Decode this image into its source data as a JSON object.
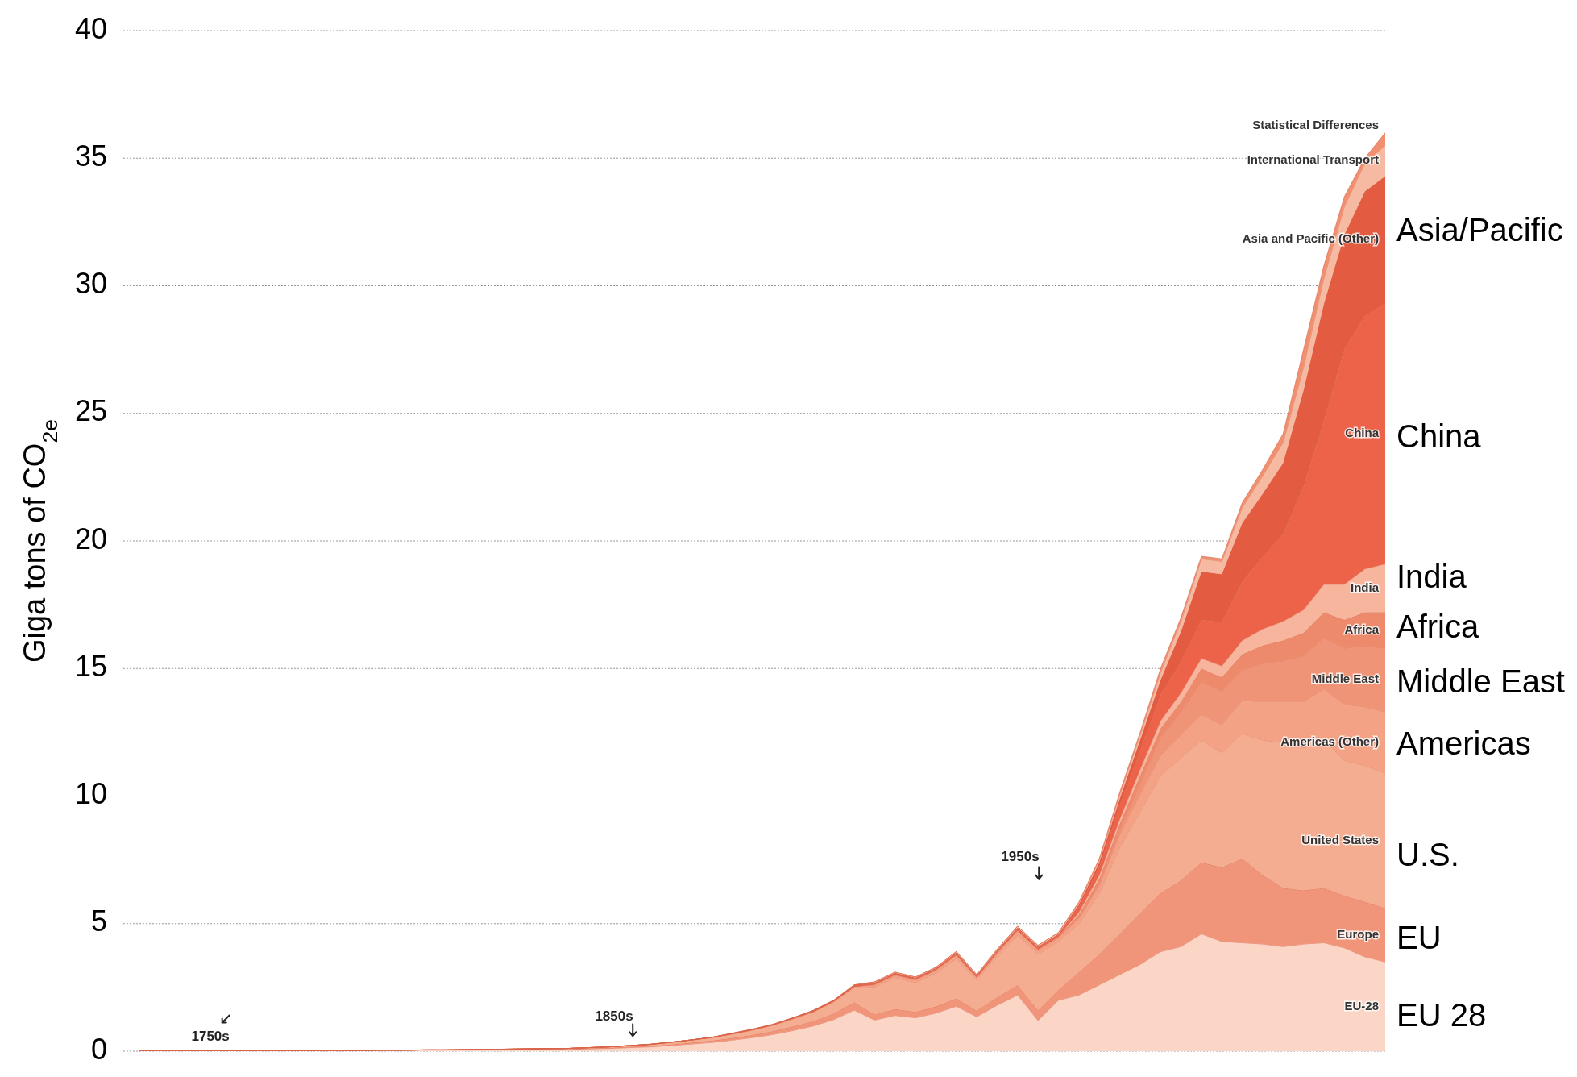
{
  "chart_data": {
    "type": "area",
    "stacked": true,
    "ylabel": "Giga tons of CO$_{2e}$",
    "ylim": [
      0,
      40
    ],
    "yticks": [
      0,
      5,
      10,
      15,
      20,
      25,
      30,
      35,
      40
    ],
    "grid": "y",
    "tick_labels": "y",
    "categories": [
      null,
      null,
      null,
      null,
      null,
      null,
      null,
      null,
      null,
      null,
      null,
      null,
      null,
      null,
      null,
      null,
      null,
      null,
      null,
      null,
      null,
      null,
      null,
      null,
      null,
      null,
      null,
      null,
      null,
      null,
      null,
      null,
      null,
      null,
      null,
      null,
      null,
      null,
      null,
      null,
      null,
      null,
      null,
      null,
      null,
      null,
      null,
      null,
      null,
      null,
      null,
      null,
      null,
      null,
      null,
      null,
      null,
      null,
      null,
      null,
      null,
      null
    ],
    "series": [
      {
        "name": "EU-28",
        "color": "#fbd5c5",
        "values": [
          0.02,
          0.02,
          0.02,
          0.02,
          0.02,
          0.02,
          0.02,
          0.02,
          0.02,
          0.02,
          0.03,
          0.03,
          0.04,
          0.04,
          0.05,
          0.05,
          0.06,
          0.07,
          0.08,
          0.09,
          0.1,
          0.07,
          0.09,
          0.11,
          0.14,
          0.17,
          0.22,
          0.28,
          0.34,
          0.43,
          0.53,
          0.65,
          0.81,
          0.99,
          1.24,
          1.61,
          1.22,
          1.4,
          1.31,
          1.49,
          1.76,
          1.35,
          1.8,
          2.2,
          1.2,
          2.0,
          2.2,
          2.6,
          3.0,
          3.4,
          3.9,
          4.1,
          4.6,
          4.3,
          4.25,
          4.2,
          4.1,
          4.2,
          4.25,
          4.05,
          3.7,
          3.5
        ]
      },
      {
        "name": "Europe",
        "color": "#f0957a",
        "values": [
          0,
          0,
          0,
          0,
          0,
          0,
          0,
          0,
          0,
          0,
          0,
          0,
          0,
          0,
          0,
          0,
          0,
          0,
          0,
          0,
          0,
          0.01,
          0.02,
          0.02,
          0.03,
          0.03,
          0.04,
          0.05,
          0.07,
          0.08,
          0.1,
          0.13,
          0.16,
          0.19,
          0.24,
          0.31,
          0.22,
          0.25,
          0.23,
          0.26,
          0.31,
          0.24,
          0.32,
          0.39,
          0.4,
          0.4,
          0.9,
          1.2,
          1.6,
          2.0,
          2.3,
          2.6,
          2.8,
          2.9,
          3.3,
          2.7,
          2.3,
          2.1,
          2.15,
          2.05,
          2.15,
          2.1
        ]
      },
      {
        "name": "United States",
        "color": "#f5ad91",
        "values": [
          0,
          0,
          0,
          0,
          0,
          0,
          0,
          0,
          0,
          0,
          0,
          0,
          0,
          0,
          0,
          0,
          0,
          0,
          0,
          0,
          0,
          0.03,
          0.03,
          0.04,
          0.05,
          0.06,
          0.08,
          0.1,
          0.12,
          0.15,
          0.19,
          0.23,
          0.29,
          0.35,
          0.44,
          0.57,
          1.08,
          1.24,
          1.16,
          1.32,
          1.56,
          1.2,
          1.6,
          1.96,
          2.2,
          1.9,
          1.9,
          2.4,
          3.4,
          4.0,
          4.6,
          4.8,
          4.8,
          4.5,
          4.9,
          5.3,
          5.7,
          5.6,
          5.8,
          5.3,
          5.35,
          5.3
        ]
      },
      {
        "name": "Americas (Other)",
        "color": "#f3a285",
        "values": [
          0,
          0,
          0,
          0,
          0,
          0,
          0,
          0,
          0,
          0,
          0,
          0,
          0,
          0,
          0,
          0,
          0,
          0,
          0,
          0,
          0,
          0,
          0,
          0,
          0,
          0.01,
          0.01,
          0.01,
          0.01,
          0.02,
          0.02,
          0.02,
          0.03,
          0.03,
          0.04,
          0.05,
          0.08,
          0.09,
          0.09,
          0.1,
          0.12,
          0.09,
          0.12,
          0.15,
          0.15,
          0.15,
          0.2,
          0.3,
          0.5,
          0.7,
          0.8,
          0.9,
          1.0,
          1.1,
          1.3,
          1.5,
          1.6,
          1.8,
          2.0,
          2.2,
          2.3,
          2.4
        ]
      },
      {
        "name": "Middle East",
        "color": "#ef9477",
        "values": [
          0,
          0,
          0,
          0,
          0,
          0,
          0,
          0,
          0,
          0,
          0,
          0,
          0,
          0,
          0,
          0,
          0,
          0,
          0,
          0,
          0,
          0,
          0,
          0,
          0,
          0,
          0,
          0,
          0,
          0,
          0,
          0,
          0,
          0,
          0,
          0,
          0.03,
          0.03,
          0.03,
          0.03,
          0.04,
          0.03,
          0.04,
          0.05,
          0.05,
          0.05,
          0.05,
          0.1,
          0.2,
          0.4,
          0.7,
          0.9,
          1.3,
          1.3,
          1.2,
          1.5,
          1.6,
          1.8,
          2.0,
          2.2,
          2.4,
          2.5
        ]
      },
      {
        "name": "Africa",
        "color": "#ee8a6c",
        "values": [
          0,
          0,
          0,
          0,
          0,
          0,
          0,
          0,
          0,
          0,
          0,
          0,
          0,
          0,
          0,
          0,
          0,
          0,
          0,
          0,
          0,
          0,
          0,
          0,
          0,
          0,
          0,
          0,
          0,
          0,
          0,
          0,
          0,
          0,
          0,
          0,
          0,
          0,
          0,
          0,
          0,
          0,
          0,
          0,
          0,
          0,
          0.1,
          0.15,
          0.2,
          0.3,
          0.35,
          0.4,
          0.5,
          0.55,
          0.6,
          0.7,
          0.8,
          0.9,
          1.0,
          1.1,
          1.3,
          1.4
        ]
      },
      {
        "name": "India",
        "color": "#f6b59c",
        "values": [
          0,
          0,
          0,
          0,
          0,
          0,
          0,
          0,
          0,
          0,
          0,
          0,
          0,
          0,
          0,
          0,
          0,
          0,
          0,
          0,
          0,
          0,
          0,
          0,
          0,
          0,
          0,
          0,
          0,
          0,
          0,
          0,
          0,
          0,
          0,
          0,
          0,
          0,
          0,
          0,
          0,
          0,
          0,
          0,
          0,
          0,
          0.1,
          0.15,
          0.2,
          0.25,
          0.3,
          0.35,
          0.4,
          0.45,
          0.55,
          0.65,
          0.75,
          0.9,
          1.1,
          1.4,
          1.7,
          1.9
        ]
      },
      {
        "name": "China",
        "color": "#ec634a",
        "values": [
          0,
          0,
          0,
          0,
          0,
          0,
          0,
          0,
          0,
          0,
          0,
          0,
          0,
          0,
          0,
          0,
          0,
          0,
          0,
          0,
          0,
          0,
          0,
          0,
          0,
          0,
          0,
          0,
          0,
          0.01,
          0.01,
          0.01,
          0.01,
          0.02,
          0.02,
          0.03,
          0.03,
          0.03,
          0.03,
          0.03,
          0.04,
          0.03,
          0.04,
          0.05,
          0.05,
          0.05,
          0.2,
          0.3,
          0.5,
          0.7,
          1.0,
          1.2,
          1.5,
          1.7,
          2.3,
          2.8,
          3.4,
          4.8,
          6.4,
          9.2,
          9.9,
          10.2
        ]
      },
      {
        "name": "Asia and Pacific (Other)",
        "color": "#e35b40",
        "values": [
          0,
          0,
          0,
          0,
          0,
          0,
          0,
          0,
          0,
          0,
          0,
          0,
          0,
          0,
          0,
          0,
          0,
          0,
          0,
          0,
          0,
          0,
          0,
          0,
          0,
          0,
          0,
          0,
          0,
          0.01,
          0.01,
          0.01,
          0.01,
          0.02,
          0.02,
          0.03,
          0.03,
          0.03,
          0.03,
          0.03,
          0.04,
          0.03,
          0.04,
          0.05,
          0.05,
          0.05,
          0.1,
          0.2,
          0.3,
          0.45,
          0.6,
          1.2,
          1.9,
          1.9,
          2.3,
          2.5,
          2.8,
          3.8,
          4.6,
          4.5,
          4.9,
          5.0
        ]
      },
      {
        "name": "International Transport",
        "color": "#f6b9a1",
        "values": [
          0,
          0,
          0,
          0,
          0,
          0,
          0,
          0,
          0,
          0,
          0,
          0,
          0,
          0,
          0,
          0,
          0,
          0,
          0,
          0,
          0,
          0,
          0,
          0,
          0,
          0,
          0,
          0,
          0,
          0,
          0,
          0,
          0,
          0,
          0,
          0,
          0.03,
          0.03,
          0.03,
          0.03,
          0.04,
          0.03,
          0.04,
          0.05,
          0.05,
          0.05,
          0.05,
          0.1,
          0.15,
          0.2,
          0.3,
          0.4,
          0.5,
          0.5,
          0.6,
          0.7,
          0.8,
          0.9,
          1.0,
          1.1,
          1.1,
          1.2
        ]
      },
      {
        "name": "Statistical Differences",
        "color": "#f09070",
        "values": [
          0,
          0,
          0,
          0,
          0,
          0,
          0,
          0,
          0,
          0,
          0,
          0,
          0,
          0,
          0,
          0,
          0,
          0,
          0,
          0,
          0,
          0,
          0,
          0,
          0,
          0,
          0,
          0,
          0,
          0,
          0,
          0,
          0,
          0,
          0,
          0,
          0,
          0,
          0,
          0,
          0,
          0,
          0,
          0,
          0,
          0,
          0.05,
          0.05,
          0.1,
          0.1,
          0.15,
          0.15,
          0.1,
          0.1,
          0.2,
          0.25,
          0.35,
          0.7,
          0.5,
          0.4,
          0.2,
          0.5
        ]
      }
    ],
    "annotations": [
      "1750s",
      "1850s",
      "1950s",
      "EU 28",
      "EU",
      "U.S.",
      "Americas",
      "Middle East",
      "Africa",
      "India",
      "China",
      "Asia/Pacific"
    ]
  }
}
